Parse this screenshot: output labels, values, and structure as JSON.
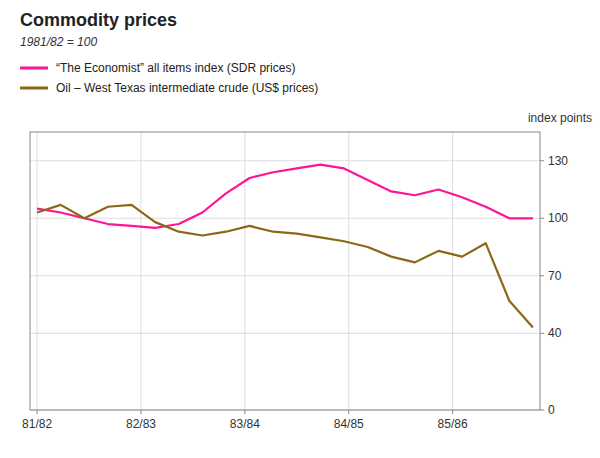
{
  "chart_data": {
    "type": "line",
    "title": "Commodity prices",
    "subtitle": "1981/82 = 100",
    "ylabel": "index points",
    "x": [
      0,
      1,
      2,
      3,
      4,
      5,
      6,
      7,
      8,
      9,
      10,
      11,
      12,
      13,
      14,
      15,
      16,
      17,
      18,
      19,
      20,
      21
    ],
    "xlim": [
      -0.3,
      21.3
    ],
    "xticks": [
      {
        "value": 0,
        "label": "81/82"
      },
      {
        "value": 4.4,
        "label": "82/83"
      },
      {
        "value": 8.8,
        "label": "83/84"
      },
      {
        "value": 13.2,
        "label": "84/85"
      },
      {
        "value": 17.6,
        "label": "85/86"
      }
    ],
    "ylim": [
      0,
      145
    ],
    "yticks": [
      0,
      40,
      70,
      100,
      130
    ],
    "grid": true,
    "legend": "top",
    "series": [
      {
        "name": "“The Economist” all items index (SDR prices)",
        "color": "#FF1493",
        "values": [
          105,
          103,
          100,
          97,
          96,
          95,
          97,
          103,
          113,
          121,
          124,
          126,
          128,
          126,
          120,
          114,
          112,
          115,
          111,
          106,
          100,
          100
        ]
      },
      {
        "name": "Oil – West Texas intermediate crude (US$ prices)",
        "color": "#8B6914",
        "values": [
          103,
          107,
          100,
          106,
          107,
          98,
          93,
          91,
          93,
          96,
          93,
          92,
          90,
          88,
          85,
          80,
          77,
          83,
          80,
          87,
          57,
          43
        ]
      }
    ]
  }
}
